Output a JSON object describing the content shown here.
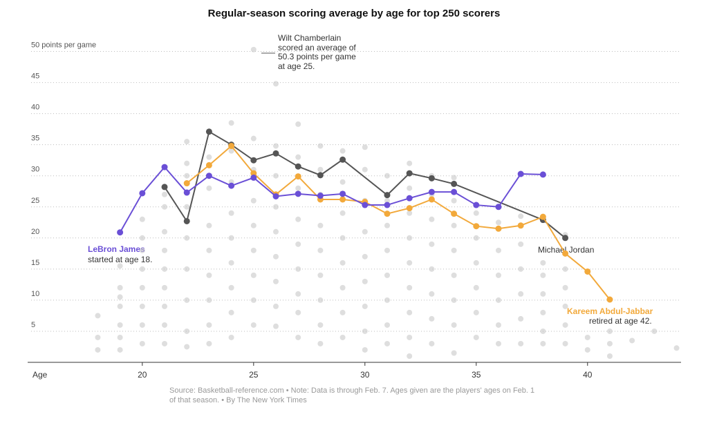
{
  "chart_data": {
    "type": "line",
    "title": "Regular-season scoring average by age for top 250 scorers",
    "x_label": "Age",
    "xlim": [
      14.85,
      44.2
    ],
    "xticks": [
      20,
      25,
      30,
      35,
      40
    ],
    "ylim": [
      0,
      52.5
    ],
    "yticks": [
      5,
      10,
      15,
      20,
      25,
      30,
      35,
      40,
      45,
      {
        "value": 50,
        "label": "50 points per game"
      }
    ],
    "grid": true,
    "series": [
      {
        "color": "#c8c8c8",
        "line": false,
        "x": [
          18,
          18,
          18,
          19,
          19,
          19,
          19,
          19,
          19,
          19,
          20,
          20,
          20,
          20,
          20,
          20,
          20,
          20,
          21,
          21,
          21,
          21,
          21,
          21,
          21,
          21,
          21,
          22,
          22,
          22,
          22,
          22,
          22,
          22,
          22,
          22,
          23,
          23,
          23,
          23,
          23,
          23,
          23,
          23,
          23,
          24,
          24,
          24,
          24,
          24,
          24,
          24,
          24,
          24,
          25,
          25,
          25,
          25,
          25,
          25,
          25,
          25,
          25,
          26,
          26,
          26,
          26,
          26,
          26,
          26,
          26,
          26,
          27,
          27,
          27,
          27,
          27,
          27,
          27,
          27,
          27,
          28,
          28,
          28,
          28,
          28,
          28,
          28,
          28,
          28,
          29,
          29,
          29,
          29,
          29,
          29,
          29,
          29,
          30,
          30,
          30,
          30,
          30,
          30,
          30,
          30,
          30,
          31,
          31,
          31,
          31,
          31,
          31,
          31,
          31,
          32,
          32,
          32,
          32,
          32,
          32,
          32,
          32,
          32,
          33,
          33,
          33,
          33,
          33,
          33,
          33,
          33,
          34,
          34,
          34,
          34,
          34,
          34,
          34,
          34,
          35,
          35,
          35,
          35,
          35,
          35,
          36,
          36,
          36,
          36,
          36,
          36,
          37,
          37,
          37,
          37,
          37,
          37,
          38,
          38,
          38,
          38,
          38,
          38,
          39,
          39,
          39,
          39,
          39,
          39,
          40,
          40,
          41,
          41,
          41,
          42,
          43,
          44
        ],
        "values": [
          7.5,
          4,
          2,
          15.5,
          12,
          9,
          6,
          4,
          2,
          10.5,
          23,
          18,
          15,
          12,
          9,
          6,
          3,
          20,
          25,
          21,
          18,
          15,
          12,
          9,
          6,
          3,
          27,
          35.5,
          30,
          25,
          20,
          15,
          10,
          5,
          2.5,
          32,
          37,
          33,
          28,
          22,
          18,
          14,
          10,
          6,
          3,
          38.5,
          34,
          29,
          24,
          20,
          16,
          12,
          8,
          4,
          50.3,
          36,
          31,
          26,
          22,
          18,
          14,
          10,
          6,
          44.8,
          34.8,
          30,
          25,
          21,
          17,
          13,
          9,
          5.8,
          38.3,
          33,
          28,
          23,
          19,
          15,
          11,
          8,
          4,
          34.8,
          31,
          27,
          22,
          18,
          14,
          10,
          6,
          3,
          34,
          29,
          24,
          20,
          16,
          12,
          8,
          4,
          34.6,
          31,
          26,
          21,
          17,
          13,
          9,
          5,
          2,
          30,
          26,
          22,
          18,
          14,
          10,
          6,
          3,
          32,
          28,
          24,
          20,
          16,
          12,
          8,
          4,
          1,
          30,
          27,
          23,
          19,
          15,
          11,
          7,
          3,
          29.7,
          26,
          22,
          18,
          14,
          10,
          6,
          1.5,
          24,
          20,
          16,
          12,
          8,
          4,
          22.5,
          18,
          14,
          10,
          6,
          3,
          23.5,
          19,
          15,
          11,
          7,
          3,
          16,
          14,
          11,
          8,
          5,
          3,
          20.5,
          15,
          12,
          9,
          6,
          3,
          4,
          2,
          5,
          3,
          1,
          3.5,
          5,
          2.3
        ]
      },
      {
        "name": "Michael Jordan",
        "color": "#555555",
        "line": true,
        "x": [
          21,
          22,
          23,
          24,
          25,
          26,
          27,
          28,
          29,
          31,
          32,
          33,
          34,
          38,
          39
        ],
        "values": [
          28.2,
          22.7,
          37.1,
          35.0,
          32.5,
          33.6,
          31.5,
          30.1,
          32.6,
          26.9,
          30.4,
          29.6,
          28.7,
          22.9,
          20.0
        ]
      },
      {
        "name": "Kareem Abdul-Jabbar",
        "color": "#f2a93b",
        "line": true,
        "x": [
          22,
          23,
          24,
          25,
          26,
          27,
          28,
          29,
          30,
          31,
          32,
          33,
          34,
          35,
          36,
          37,
          38,
          39,
          40,
          41
        ],
        "values": [
          28.8,
          31.7,
          34.8,
          30.4,
          27.0,
          29.9,
          26.2,
          26.2,
          25.8,
          23.9,
          24.8,
          26.2,
          23.9,
          21.9,
          21.5,
          22.0,
          23.4,
          17.5,
          14.6,
          10.1
        ]
      },
      {
        "name": "LeBron James",
        "color": "#6a4fd6",
        "line": true,
        "x": [
          19,
          20,
          21,
          22,
          23,
          24,
          25,
          26,
          27,
          28,
          29,
          30,
          31,
          32,
          33,
          34,
          35,
          36,
          37,
          38
        ],
        "values": [
          20.9,
          27.2,
          31.4,
          27.3,
          30.0,
          28.4,
          29.7,
          26.7,
          27.1,
          26.8,
          27.1,
          25.3,
          25.3,
          26.4,
          27.4,
          27.4,
          25.3,
          25.0,
          30.3,
          30.2
        ]
      }
    ],
    "annotations": {
      "wilt": [
        "Wilt Chamberlain",
        "scored an average of",
        "50.3 points per game",
        "at age 25."
      ],
      "lebron": "started at age 18.",
      "kareem": "retired at age 42."
    },
    "source": [
      "Source: Basketball-reference.com  •  Note: Data is through Feb. 7. Ages given are the players' ages on Feb. 1",
      "of that season.  •  By The New York Times"
    ]
  }
}
